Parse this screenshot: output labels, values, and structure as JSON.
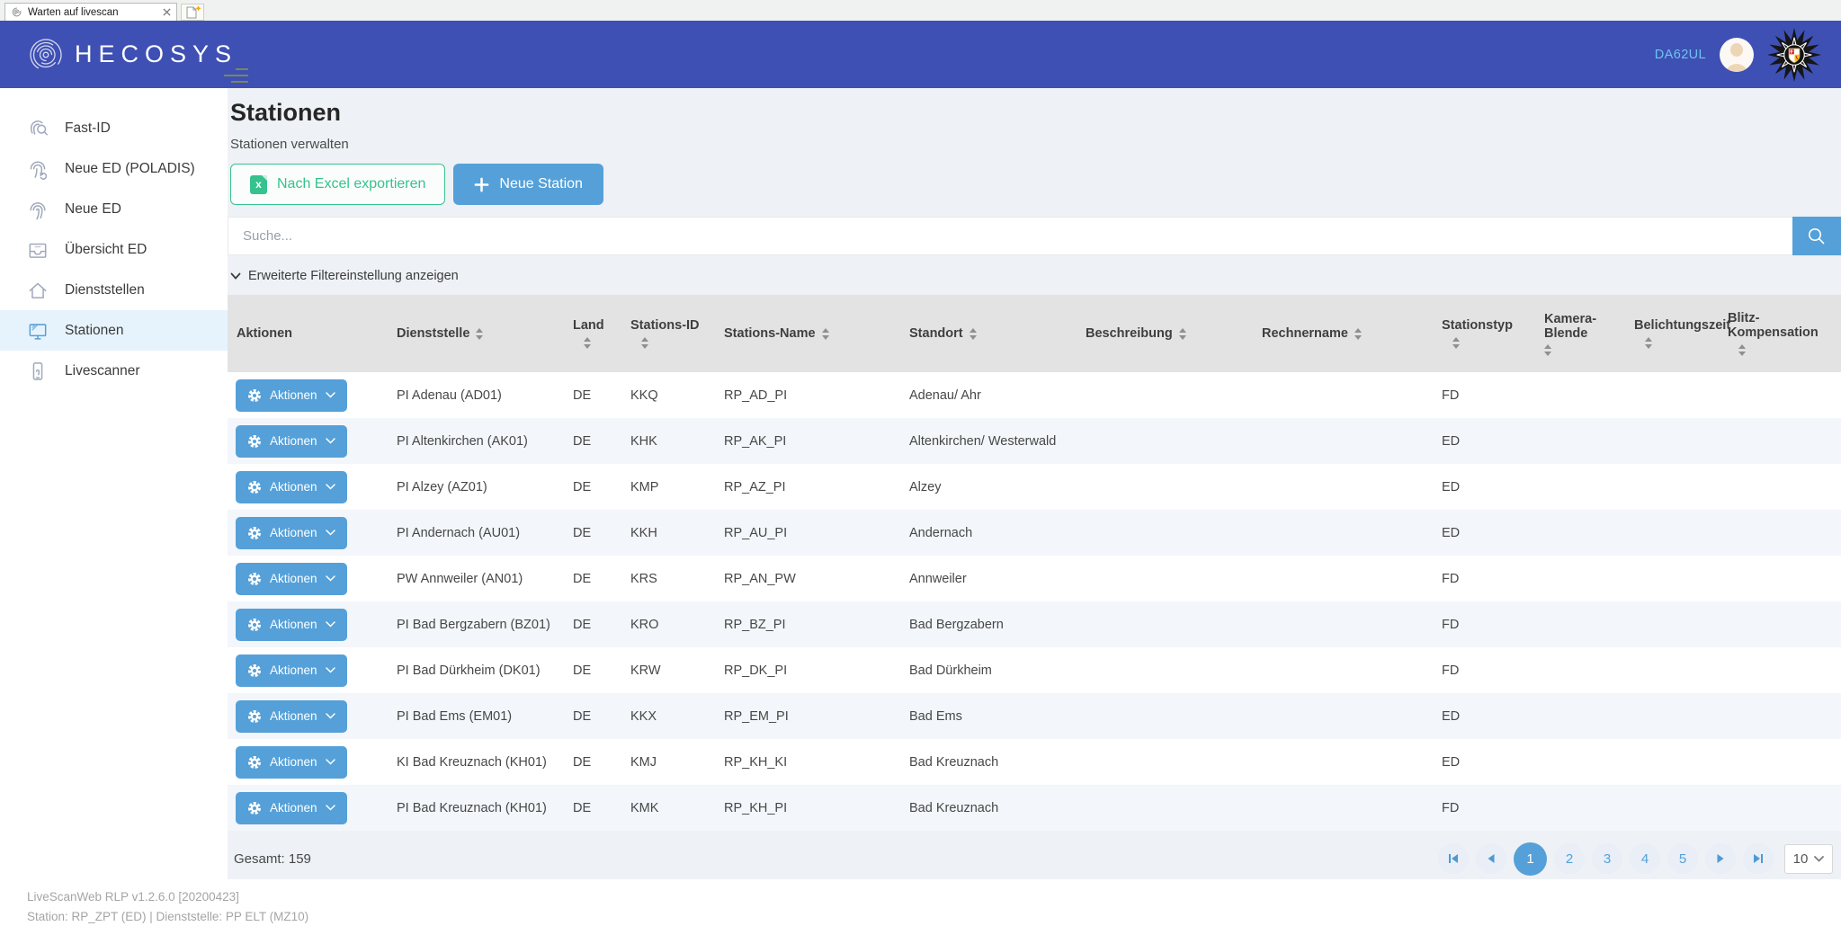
{
  "browser": {
    "tab_title": "Warten auf livescan"
  },
  "header": {
    "brand": "HECOSYS",
    "username": "DA62UL"
  },
  "sidebar": {
    "items": [
      {
        "label": "Fast-ID",
        "icon": "fast-id",
        "active": false
      },
      {
        "label": "Neue ED (POLADIS)",
        "icon": "fingerprint-sync",
        "active": false
      },
      {
        "label": "Neue ED",
        "icon": "fingerprint",
        "active": false
      },
      {
        "label": "Übersicht ED",
        "icon": "inbox",
        "active": false
      },
      {
        "label": "Dienststellen",
        "icon": "home",
        "active": false
      },
      {
        "label": "Stationen",
        "icon": "monitor",
        "active": true
      },
      {
        "label": "Livescanner",
        "icon": "smartphone",
        "active": false
      }
    ]
  },
  "page": {
    "title": "Stationen",
    "subtitle": "Stationen verwalten",
    "export_label": "Nach Excel exportieren",
    "new_label": "Neue Station",
    "search_placeholder": "Suche...",
    "filter_label": "Erweiterte Filtereinstellung anzeigen",
    "table": {
      "action_label": "Aktionen",
      "columns": [
        {
          "label": "Aktionen",
          "sortable": false
        },
        {
          "label": "Dienststelle",
          "sortable": true
        },
        {
          "label": "Land",
          "sortable": true
        },
        {
          "label": "Stations-ID",
          "sortable": true
        },
        {
          "label": "Stations-Name",
          "sortable": true
        },
        {
          "label": "Standort",
          "sortable": true
        },
        {
          "label": "Beschreibung",
          "sortable": true
        },
        {
          "label": "Rechnername",
          "sortable": true
        },
        {
          "label": "Stationstyp",
          "sortable": true
        },
        {
          "label": "Kamera-Blende",
          "sortable": true
        },
        {
          "label": "Belichtungszeit",
          "sortable": true
        },
        {
          "label": "Blitz-Kompensation",
          "sortable": true
        }
      ],
      "rows": [
        {
          "dienststelle": "PI Adenau (AD01)",
          "land": "DE",
          "stations_id": "KKQ",
          "stations_name": "RP_AD_PI",
          "standort": "Adenau/ Ahr",
          "beschreibung": "",
          "rechnername": "",
          "stationstyp": "FD",
          "kamera_blende": "",
          "belichtungszeit": "",
          "blitz_kompensation": ""
        },
        {
          "dienststelle": "PI Altenkirchen (AK01)",
          "land": "DE",
          "stations_id": "KHK",
          "stations_name": "RP_AK_PI",
          "standort": "Altenkirchen/ Westerwald",
          "beschreibung": "",
          "rechnername": "",
          "stationstyp": "ED",
          "kamera_blende": "",
          "belichtungszeit": "",
          "blitz_kompensation": ""
        },
        {
          "dienststelle": "PI Alzey (AZ01)",
          "land": "DE",
          "stations_id": "KMP",
          "stations_name": "RP_AZ_PI",
          "standort": "Alzey",
          "beschreibung": "",
          "rechnername": "",
          "stationstyp": "ED",
          "kamera_blende": "",
          "belichtungszeit": "",
          "blitz_kompensation": ""
        },
        {
          "dienststelle": "PI Andernach (AU01)",
          "land": "DE",
          "stations_id": "KKH",
          "stations_name": "RP_AU_PI",
          "standort": "Andernach",
          "beschreibung": "",
          "rechnername": "",
          "stationstyp": "ED",
          "kamera_blende": "",
          "belichtungszeit": "",
          "blitz_kompensation": ""
        },
        {
          "dienststelle": "PW Annweiler (AN01)",
          "land": "DE",
          "stations_id": "KRS",
          "stations_name": "RP_AN_PW",
          "standort": "Annweiler",
          "beschreibung": "",
          "rechnername": "",
          "stationstyp": "FD",
          "kamera_blende": "",
          "belichtungszeit": "",
          "blitz_kompensation": ""
        },
        {
          "dienststelle": "PI Bad Bergzabern (BZ01)",
          "land": "DE",
          "stations_id": "KRO",
          "stations_name": "RP_BZ_PI",
          "standort": "Bad Bergzabern",
          "beschreibung": "",
          "rechnername": "",
          "stationstyp": "FD",
          "kamera_blende": "",
          "belichtungszeit": "",
          "blitz_kompensation": ""
        },
        {
          "dienststelle": "PI Bad Dürkheim (DK01)",
          "land": "DE",
          "stations_id": "KRW",
          "stations_name": "RP_DK_PI",
          "standort": "Bad Dürkheim",
          "beschreibung": "",
          "rechnername": "",
          "stationstyp": "FD",
          "kamera_blende": "",
          "belichtungszeit": "",
          "blitz_kompensation": ""
        },
        {
          "dienststelle": "PI Bad Ems (EM01)",
          "land": "DE",
          "stations_id": "KKX",
          "stations_name": "RP_EM_PI",
          "standort": "Bad Ems",
          "beschreibung": "",
          "rechnername": "",
          "stationstyp": "ED",
          "kamera_blende": "",
          "belichtungszeit": "",
          "blitz_kompensation": ""
        },
        {
          "dienststelle": "KI Bad Kreuznach (KH01)",
          "land": "DE",
          "stations_id": "KMJ",
          "stations_name": "RP_KH_KI",
          "standort": "Bad Kreuznach",
          "beschreibung": "",
          "rechnername": "",
          "stationstyp": "ED",
          "kamera_blende": "",
          "belichtungszeit": "",
          "blitz_kompensation": ""
        },
        {
          "dienststelle": "PI Bad Kreuznach (KH01)",
          "land": "DE",
          "stations_id": "KMK",
          "stations_name": "RP_KH_PI",
          "standort": "Bad Kreuznach",
          "beschreibung": "",
          "rechnername": "",
          "stationstyp": "FD",
          "kamera_blende": "",
          "belichtungszeit": "",
          "blitz_kompensation": ""
        }
      ]
    },
    "pager": {
      "total_label": "Gesamt: 159",
      "pages": [
        "1",
        "2",
        "3",
        "4",
        "5"
      ],
      "active_page": "1",
      "page_size": "10"
    }
  },
  "footer": {
    "line1": "LiveScanWeb RLP v1.2.6.0 [20200423]",
    "line2": "Station: RP_ZPT (ED) | Dienststelle: PP ELT (MZ10)"
  },
  "colors": {
    "header_blue": "#3e50b4",
    "accent_blue": "#55a0d8",
    "green": "#35c28f"
  }
}
